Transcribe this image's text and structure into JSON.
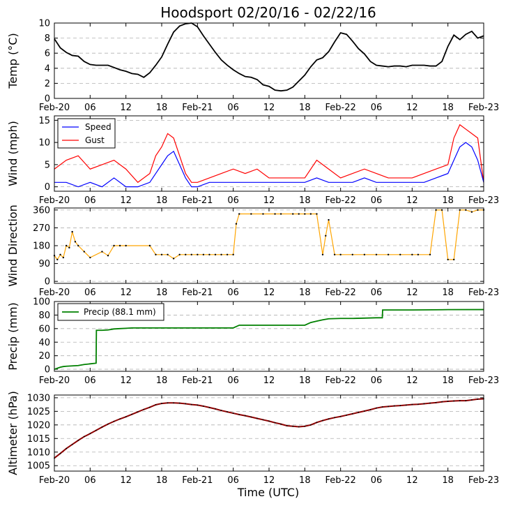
{
  "figure": {
    "title": "Hoodsport 02/20/16 - 02/22/16",
    "xlabel": "Time (UTC)"
  },
  "time_axis": {
    "range_hours": [
      0,
      72
    ],
    "tick_hours": [
      0,
      6,
      12,
      18,
      24,
      30,
      36,
      42,
      48,
      54,
      60,
      66,
      72
    ],
    "tick_labels": [
      "Feb-20",
      "06",
      "12",
      "18",
      "Feb-21",
      "06",
      "12",
      "18",
      "Feb-22",
      "06",
      "12",
      "18",
      "Feb-23"
    ]
  },
  "colors": {
    "temp": "#000000",
    "speed": "#0000ff",
    "gust": "#ff0000",
    "direction_line": "#ffa500",
    "direction_dot": "#000000",
    "precip": "#008000",
    "altimeter_line": "#8b0000",
    "altimeter_dot": "#000000"
  },
  "chart_data": [
    {
      "type": "line",
      "name": "temperature",
      "ylabel": "Temp (°C)",
      "ylim": [
        0,
        10
      ],
      "yticks": [
        0,
        2,
        4,
        6,
        8,
        10
      ],
      "x": [
        0,
        0.5,
        1,
        2,
        3,
        4,
        5,
        6,
        7,
        8,
        9,
        10,
        11,
        12,
        13,
        14,
        15,
        16,
        17,
        18,
        19,
        20,
        21,
        22,
        23,
        24,
        25,
        26,
        27,
        28,
        29,
        30,
        31,
        32,
        33,
        34,
        35,
        36,
        37,
        38,
        39,
        40,
        41,
        42,
        43,
        44,
        45,
        46,
        47,
        48,
        49,
        50,
        51,
        52,
        53,
        54,
        55,
        56,
        57,
        58,
        59,
        60,
        61,
        62,
        63,
        64,
        65,
        66,
        67,
        68,
        69,
        70,
        71,
        72
      ],
      "values": [
        7.9,
        7.3,
        6.7,
        6.1,
        5.7,
        5.6,
        4.9,
        4.5,
        4.4,
        4.4,
        4.4,
        4.1,
        3.8,
        3.6,
        3.3,
        3.2,
        2.8,
        3.4,
        4.4,
        5.5,
        7.2,
        8.8,
        9.6,
        9.9,
        10.0,
        9.5,
        8.3,
        7.2,
        6.1,
        5.1,
        4.4,
        3.8,
        3.3,
        2.9,
        2.8,
        2.5,
        1.8,
        1.6,
        1.1,
        1.0,
        1.1,
        1.5,
        2.3,
        3.1,
        4.2,
        5.1,
        5.4,
        6.2,
        7.5,
        8.7,
        8.5,
        7.6,
        6.6,
        5.9,
        4.9,
        4.4,
        4.3,
        4.2,
        4.3,
        4.3,
        4.2,
        4.4,
        4.4,
        4.4,
        4.3,
        4.3,
        4.9,
        6.9,
        8.4,
        7.8,
        8.5,
        8.9,
        8.0,
        8.3
      ]
    },
    {
      "type": "line",
      "name": "wind",
      "ylabel": "Wind (mph)",
      "ylim": [
        -1,
        16
      ],
      "yticks": [
        0,
        5,
        10,
        15
      ],
      "legend": [
        "Speed",
        "Gust"
      ],
      "x": [
        0,
        2,
        4,
        6,
        8,
        10,
        12,
        14,
        16,
        17,
        18,
        19,
        20,
        21,
        22,
        23,
        24,
        26,
        28,
        30,
        32,
        34,
        36,
        38,
        40,
        42,
        44,
        46,
        48,
        50,
        52,
        54,
        56,
        58,
        60,
        62,
        64,
        66,
        67,
        68,
        69,
        70,
        71,
        72
      ],
      "series": [
        {
          "name": "Speed",
          "values": [
            1,
            1,
            0,
            1,
            0,
            2,
            0,
            0,
            1,
            3,
            5,
            7,
            8,
            5,
            2,
            0,
            0,
            1,
            1,
            1,
            1,
            1,
            1,
            1,
            1,
            1,
            2,
            1,
            1,
            1,
            2,
            1,
            1,
            1,
            1,
            1,
            2,
            3,
            6,
            9,
            10,
            9,
            6,
            1
          ]
        },
        {
          "name": "Gust",
          "values": [
            4,
            6,
            7,
            4,
            5,
            6,
            4,
            1,
            3,
            7,
            9,
            12,
            11,
            7,
            3,
            1,
            1,
            2,
            3,
            4,
            3,
            4,
            2,
            2,
            2,
            2,
            6,
            4,
            2,
            3,
            4,
            3,
            2,
            2,
            2,
            3,
            4,
            5,
            11,
            14,
            13,
            12,
            11,
            1
          ]
        }
      ]
    },
    {
      "type": "scatter",
      "name": "wind_direction",
      "ylabel": "Wind Direction",
      "ylim": [
        -10,
        370
      ],
      "yticks": [
        0,
        90,
        180,
        270,
        360
      ],
      "x": [
        0,
        0.5,
        1,
        1.5,
        2,
        2.5,
        3,
        3.5,
        4,
        5,
        6,
        8,
        9,
        10,
        11,
        12,
        16,
        17,
        18,
        19,
        20,
        21,
        22,
        23,
        24,
        25,
        26,
        27,
        28,
        29,
        30,
        30.5,
        31,
        33,
        35,
        37,
        38,
        40,
        41,
        42,
        43,
        44,
        45,
        45.5,
        46,
        47,
        48,
        50,
        52,
        54,
        56,
        58,
        60,
        61,
        63,
        64,
        65,
        66,
        67,
        68,
        69,
        70,
        71,
        72
      ],
      "values": [
        130,
        110,
        135,
        120,
        180,
        170,
        250,
        200,
        180,
        150,
        120,
        150,
        130,
        180,
        180,
        180,
        180,
        135,
        135,
        135,
        115,
        135,
        135,
        135,
        135,
        135,
        135,
        135,
        135,
        135,
        135,
        290,
        340,
        340,
        340,
        340,
        340,
        340,
        340,
        340,
        340,
        340,
        135,
        230,
        310,
        135,
        135,
        135,
        135,
        135,
        135,
        135,
        135,
        135,
        135,
        360,
        360,
        110,
        110,
        360,
        360,
        350,
        360,
        360
      ]
    },
    {
      "type": "line",
      "name": "precip",
      "ylabel": "Precip (mm)",
      "ylim": [
        -3,
        100
      ],
      "yticks": [
        0,
        20,
        40,
        60,
        80,
        100
      ],
      "legend": [
        "Precip (88.1 mm)"
      ],
      "x": [
        0,
        0.5,
        1,
        1.5,
        2,
        3,
        4,
        5,
        6,
        7,
        7.05,
        8,
        9,
        10,
        11,
        12,
        13,
        18,
        24,
        30,
        31,
        32,
        36,
        40,
        42,
        43,
        44,
        45,
        46,
        48,
        50,
        52,
        54,
        55,
        55.05,
        60,
        66,
        72
      ],
      "values": [
        0,
        1.5,
        3,
        4,
        4.5,
        5,
        5.5,
        7,
        8,
        9,
        57.5,
        57.5,
        58,
        59.5,
        60,
        60.5,
        61,
        61,
        61,
        61,
        65,
        65,
        65,
        65,
        65,
        69,
        71,
        73,
        74.5,
        75,
        75,
        75.5,
        76,
        76,
        87.5,
        87.5,
        88,
        88.1
      ]
    },
    {
      "type": "line",
      "name": "altimeter",
      "ylabel": "Altimeter (hPa)",
      "ylim": [
        1003,
        1031
      ],
      "yticks": [
        1005,
        1010,
        1015,
        1020,
        1025,
        1030
      ],
      "x": [
        0,
        1,
        2,
        3,
        4,
        5,
        6,
        7,
        8,
        9,
        10,
        11,
        12,
        13,
        14,
        15,
        16,
        17,
        18,
        19,
        20,
        21,
        22,
        23,
        24,
        25,
        26,
        27,
        28,
        29,
        30,
        31,
        32,
        33,
        34,
        35,
        36,
        37,
        38,
        39,
        40,
        41,
        42,
        43,
        44,
        45,
        46,
        47,
        48,
        49,
        50,
        51,
        52,
        53,
        54,
        55,
        56,
        57,
        58,
        59,
        60,
        61,
        62,
        63,
        64,
        65,
        66,
        67,
        68,
        69,
        70,
        71,
        72
      ],
      "values": [
        1007.8,
        1009.5,
        1011.3,
        1012.8,
        1014.3,
        1015.7,
        1016.8,
        1018.0,
        1019.2,
        1020.3,
        1021.3,
        1022.2,
        1023.0,
        1023.9,
        1024.8,
        1025.7,
        1026.5,
        1027.4,
        1027.9,
        1028.1,
        1028.1,
        1028.0,
        1027.8,
        1027.5,
        1027.3,
        1026.9,
        1026.4,
        1025.9,
        1025.3,
        1024.8,
        1024.3,
        1023.8,
        1023.4,
        1022.9,
        1022.4,
        1021.9,
        1021.4,
        1020.8,
        1020.3,
        1019.7,
        1019.5,
        1019.3,
        1019.5,
        1020.0,
        1020.9,
        1021.6,
        1022.2,
        1022.7,
        1023.1,
        1023.6,
        1024.1,
        1024.6,
        1025.1,
        1025.6,
        1026.2,
        1026.6,
        1026.8,
        1027.0,
        1027.1,
        1027.3,
        1027.5,
        1027.6,
        1027.8,
        1028.0,
        1028.2,
        1028.5,
        1028.7,
        1028.8,
        1028.9,
        1028.9,
        1029.2,
        1029.5,
        1029.6
      ]
    }
  ]
}
